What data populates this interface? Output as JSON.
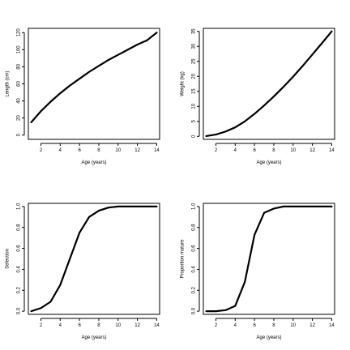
{
  "chart_data": [
    {
      "type": "line",
      "xlabel": "Age (years)",
      "ylabel": "Length (cm)",
      "xlim": [
        0.7,
        14.3
      ],
      "ylim": [
        -5,
        125
      ],
      "xticks": [
        2,
        4,
        6,
        8,
        10,
        12,
        14
      ],
      "yticks": [
        0,
        20,
        40,
        60,
        80,
        100,
        120
      ],
      "x": [
        1,
        2,
        3,
        4,
        5,
        6,
        7,
        8,
        9,
        10,
        11,
        12,
        13,
        14
      ],
      "series": [
        {
          "values": [
            15,
            28,
            39,
            49,
            58,
            66,
            74,
            81,
            88,
            94,
            100,
            106,
            111,
            120
          ]
        }
      ]
    },
    {
      "type": "line",
      "xlabel": "Age (years)",
      "ylabel": "Weight (kg)",
      "xlim": [
        0.7,
        14.3
      ],
      "ylim": [
        -1,
        36
      ],
      "xticks": [
        2,
        4,
        6,
        8,
        10,
        12,
        14
      ],
      "yticks": [
        0,
        5,
        10,
        15,
        20,
        25,
        30,
        35
      ],
      "x": [
        1,
        2,
        3,
        4,
        5,
        6,
        7,
        8,
        9,
        10,
        11,
        12,
        13,
        14
      ],
      "series": [
        {
          "values": [
            0.1,
            0.6,
            1.6,
            3.0,
            5.0,
            7.5,
            10.3,
            13.3,
            16.5,
            19.9,
            23.5,
            27.3,
            31.1,
            35.0
          ]
        }
      ]
    },
    {
      "type": "line",
      "xlabel": "Age (years)",
      "ylabel": "Selection",
      "xlim": [
        0.7,
        14.3
      ],
      "ylim": [
        -0.03,
        1.03
      ],
      "xticks": [
        2,
        4,
        6,
        8,
        10,
        12,
        14
      ],
      "yticks": [
        0.0,
        0.2,
        0.4,
        0.6,
        0.8,
        1.0
      ],
      "ytick_labels": [
        "0.0",
        "0.2",
        "0.4",
        "0.6",
        "0.8",
        "1.0"
      ],
      "x": [
        1,
        2,
        3,
        4,
        5,
        6,
        7,
        8,
        9,
        10,
        11,
        12,
        13,
        14
      ],
      "series": [
        {
          "values": [
            0.0,
            0.03,
            0.09,
            0.25,
            0.5,
            0.75,
            0.9,
            0.96,
            0.99,
            1.0,
            1.0,
            1.0,
            1.0,
            1.0
          ]
        }
      ]
    },
    {
      "type": "line",
      "xlabel": "Age (years)",
      "ylabel": "Proportion mature",
      "xlim": [
        0.7,
        14.3
      ],
      "ylim": [
        -0.03,
        1.03
      ],
      "xticks": [
        2,
        4,
        6,
        8,
        10,
        12,
        14
      ],
      "yticks": [
        0.0,
        0.2,
        0.4,
        0.6,
        0.8,
        1.0
      ],
      "ytick_labels": [
        "0.0",
        "0.2",
        "0.4",
        "0.6",
        "0.8",
        "1.0"
      ],
      "x": [
        1,
        2,
        3,
        4,
        5,
        6,
        7,
        8,
        9,
        10,
        11,
        12,
        13,
        14
      ],
      "series": [
        {
          "values": [
            0.0,
            0.0,
            0.01,
            0.05,
            0.28,
            0.73,
            0.94,
            0.98,
            1.0,
            1.0,
            1.0,
            1.0,
            1.0,
            1.0
          ]
        }
      ]
    }
  ]
}
